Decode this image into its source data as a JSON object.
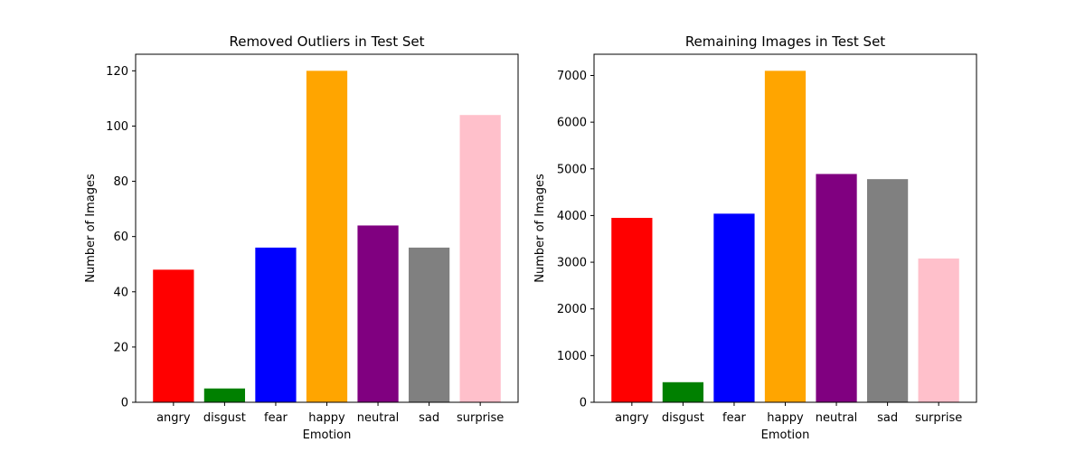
{
  "chart_data": [
    {
      "type": "bar",
      "title": "Removed Outliers in Test Set",
      "xlabel": "Emotion",
      "ylabel": "Number of Images",
      "categories": [
        "angry",
        "disgust",
        "fear",
        "happy",
        "neutral",
        "sad",
        "surprise"
      ],
      "values": [
        48,
        5,
        56,
        120,
        64,
        56,
        104
      ],
      "colors": [
        "#ff0000",
        "#008000",
        "#0000ff",
        "#ffa500",
        "#800080",
        "#808080",
        "#ffc0cb"
      ],
      "ylim": [
        0,
        126
      ],
      "yticks": [
        0,
        20,
        40,
        60,
        80,
        100,
        120
      ],
      "grid": false,
      "legend": "none"
    },
    {
      "type": "bar",
      "title": "Remaining Images in Test Set",
      "xlabel": "Emotion",
      "ylabel": "Number of Images",
      "categories": [
        "angry",
        "disgust",
        "fear",
        "happy",
        "neutral",
        "sad",
        "surprise"
      ],
      "values": [
        3950,
        430,
        4040,
        7100,
        4890,
        4780,
        3080
      ],
      "colors": [
        "#ff0000",
        "#008000",
        "#0000ff",
        "#ffa500",
        "#800080",
        "#808080",
        "#ffc0cb"
      ],
      "ylim": [
        0,
        7455
      ],
      "yticks": [
        0,
        1000,
        2000,
        3000,
        4000,
        5000,
        6000,
        7000
      ],
      "grid": false,
      "legend": "none"
    }
  ]
}
